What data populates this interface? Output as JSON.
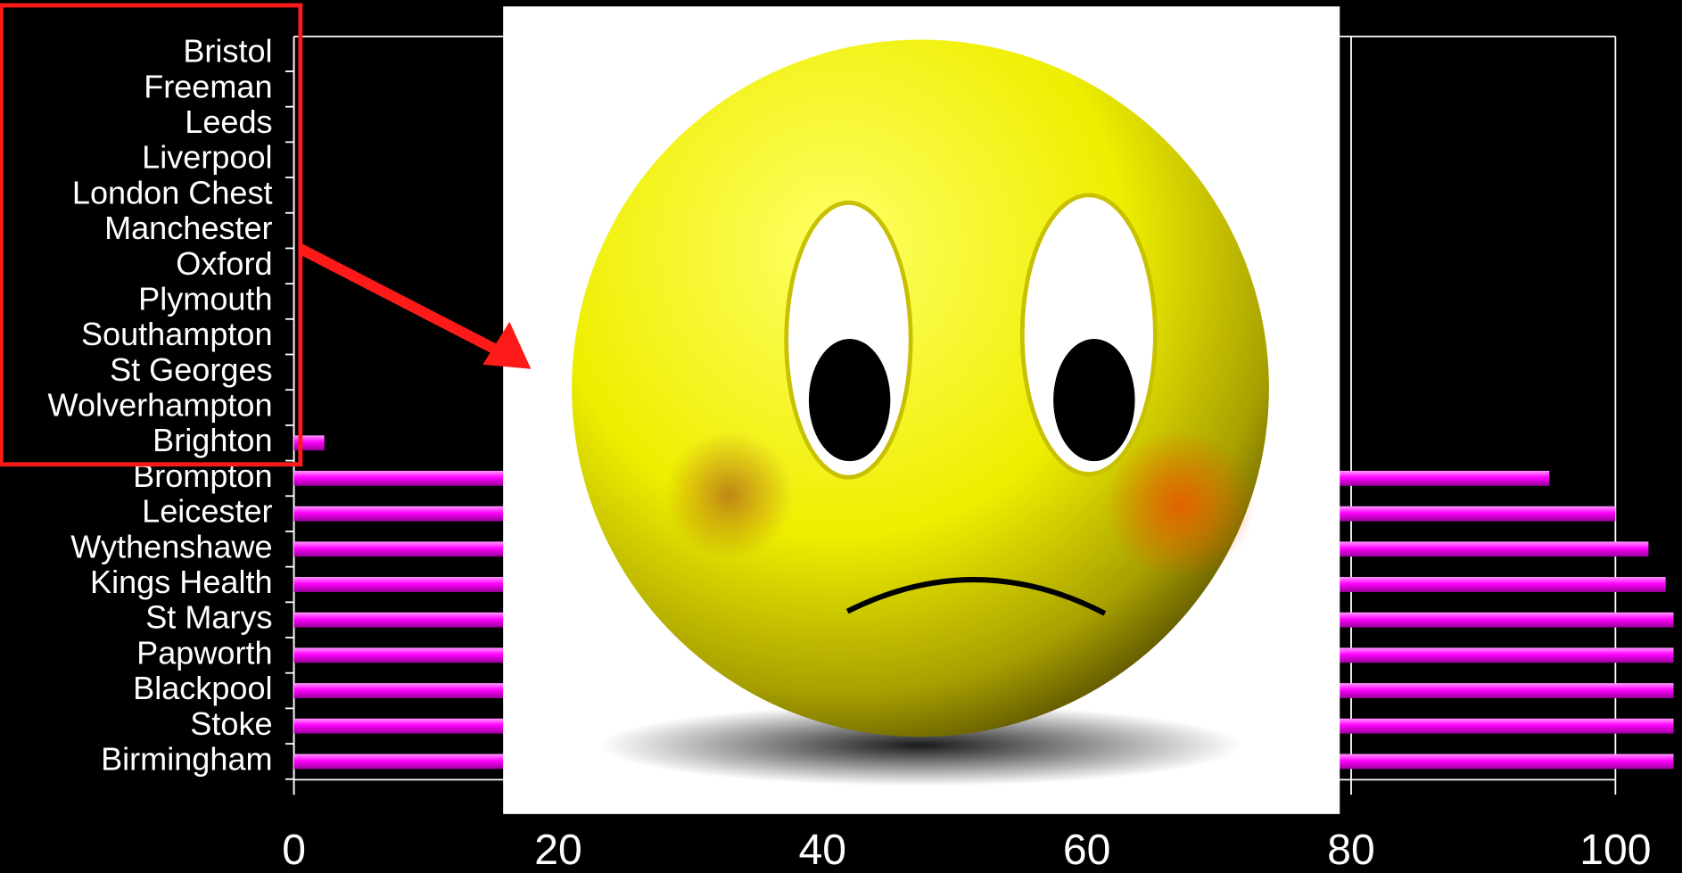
{
  "chart_data": {
    "type": "bar",
    "orientation": "horizontal",
    "categories": [
      "Bristol",
      "Freeman",
      "Leeds",
      "Liverpool",
      "London Chest",
      "Manchester",
      "Oxford",
      "Plymouth",
      "Southampton",
      "St Georges",
      "Wolverhampton",
      "Brighton",
      "Brompton",
      "Leicester",
      "Wythenshawe",
      "Kings Health",
      "St Marys",
      "Papworth",
      "Blackpool",
      "Stoke",
      "Birmingham"
    ],
    "values": [
      0,
      0,
      0,
      0,
      0,
      0,
      0,
      0,
      0,
      0,
      0,
      2.3,
      95,
      100,
      102.5,
      103.8,
      104.4,
      104.4,
      104.4,
      104.4,
      104.4
    ],
    "color": "#ff00ff",
    "xlim": [
      0,
      105
    ],
    "xticks": [
      0,
      20,
      40,
      60,
      80,
      100
    ],
    "grid": true
  }
}
